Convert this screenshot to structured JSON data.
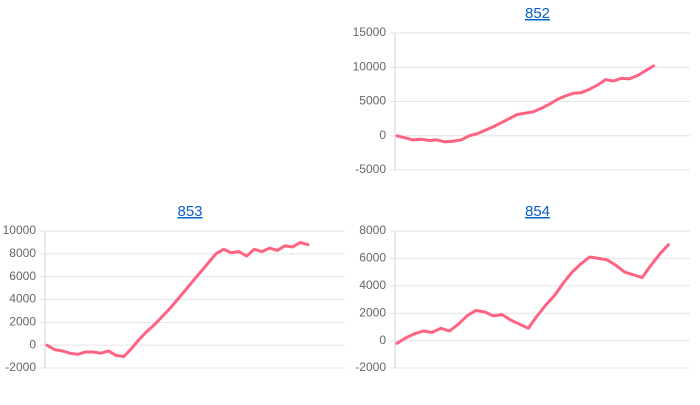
{
  "chart_data": [
    {
      "type": "line",
      "title": "852",
      "color": "#ff6384",
      "grid": true,
      "ylim": [
        -5000,
        15000
      ],
      "yticks": [
        -5000,
        0,
        5000,
        10000,
        15000
      ],
      "values": [
        0,
        -300,
        -600,
        -500,
        -700,
        -600,
        -900,
        -800,
        -600,
        0,
        300,
        800,
        1300,
        1900,
        2500,
        3100,
        3300,
        3500,
        4000,
        4600,
        5300,
        5800,
        6200,
        6300,
        6800,
        7400,
        8200,
        8000,
        8400,
        8300,
        8800,
        9500,
        10200
      ]
    },
    {
      "type": "line",
      "title": "853",
      "color": "#ff6384",
      "grid": true,
      "ylim": [
        -2000,
        10000
      ],
      "yticks": [
        -2000,
        0,
        2000,
        4000,
        6000,
        8000,
        10000
      ],
      "values": [
        0,
        -400,
        -500,
        -700,
        -800,
        -600,
        -600,
        -700,
        -500,
        -900,
        -1000,
        -300,
        500,
        1200,
        1800,
        2500,
        3200,
        4000,
        4800,
        5600,
        6400,
        7200,
        8000,
        8400,
        8100,
        8200,
        7800,
        8400,
        8200,
        8500,
        8300,
        8700,
        8600,
        9000,
        8800
      ]
    },
    {
      "type": "line",
      "title": "854",
      "color": "#ff6384",
      "grid": true,
      "ylim": [
        -2000,
        8000
      ],
      "yticks": [
        -2000,
        0,
        2000,
        4000,
        6000,
        8000
      ],
      "values": [
        -200,
        200,
        500,
        700,
        600,
        900,
        700,
        1200,
        1800,
        2200,
        2100,
        1800,
        1900,
        1500,
        1200,
        900,
        1800,
        2600,
        3300,
        4200,
        5000,
        5600,
        6100,
        6000,
        5900,
        5500,
        5000,
        4800,
        4600,
        5500,
        6300,
        7000
      ]
    }
  ]
}
